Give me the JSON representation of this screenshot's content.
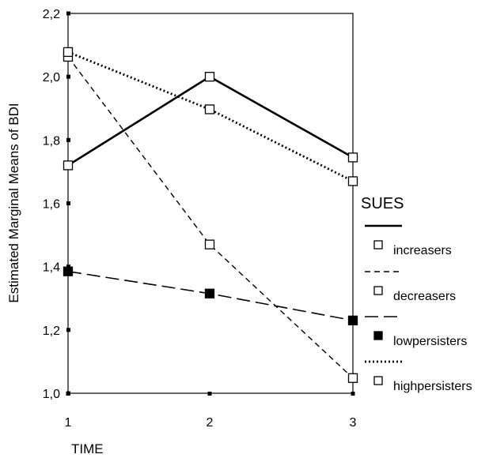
{
  "chart_data": {
    "type": "line",
    "title": "",
    "xlabel": "TIME",
    "ylabel": "Estimated Marginal Means of BDI",
    "categories": [
      "1",
      "2",
      "3"
    ],
    "ylim": [
      1.0,
      2.2
    ],
    "yticks": [
      "1,0",
      "1,2",
      "1,4",
      "1,6",
      "1,8",
      "2,0",
      "2,2"
    ],
    "legend_title": "SUES",
    "legend_position": "right",
    "grid": false,
    "series": [
      {
        "name": "increasers",
        "values": [
          1.72,
          2.0,
          1.745
        ],
        "line_style": "solid",
        "marker": "hollow-square"
      },
      {
        "name": "decreasers",
        "values": [
          2.063,
          1.47,
          1.048
        ],
        "line_style": "short-dash",
        "marker": "hollow-square"
      },
      {
        "name": "lowpersisters",
        "values": [
          1.385,
          1.315,
          1.23
        ],
        "line_style": "long-dash",
        "marker": "filled-square"
      },
      {
        "name": "highpersisters",
        "values": [
          2.078,
          1.897,
          1.67
        ],
        "line_style": "dotted",
        "marker": "hollow-square"
      }
    ]
  }
}
